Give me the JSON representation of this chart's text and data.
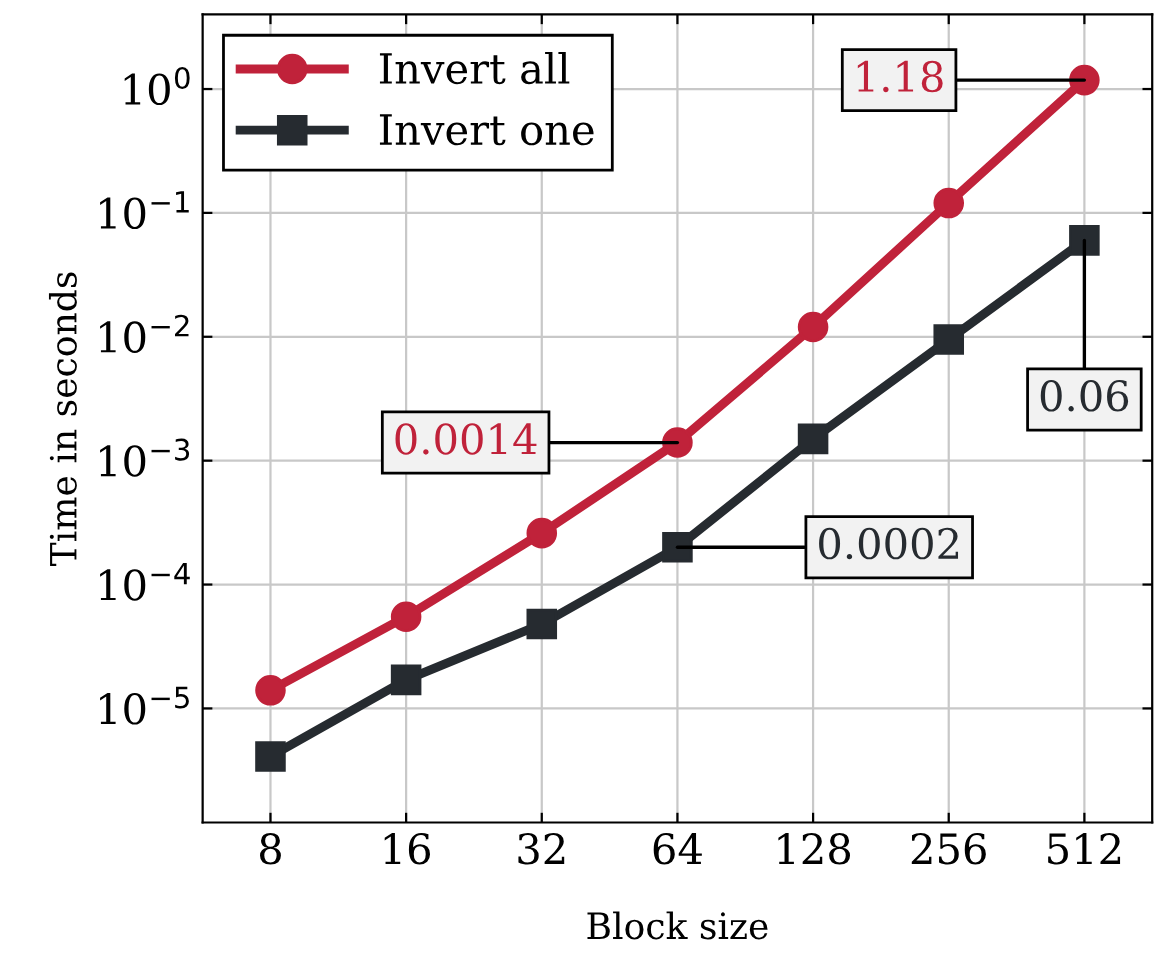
{
  "chart_data": {
    "type": "line",
    "xlabel": "Block size",
    "ylabel": "Time in seconds",
    "categories": [
      "8",
      "16",
      "32",
      "64",
      "128",
      "256",
      "512"
    ],
    "series": [
      {
        "name": "Invert all",
        "color": "#c0223a",
        "marker": "circle",
        "values": [
          1.4e-05,
          5.5e-05,
          0.00026,
          0.0014,
          0.012,
          0.12,
          1.18
        ],
        "value_labels": [
          null,
          null,
          null,
          "0.0014",
          null,
          null,
          "1.18"
        ]
      },
      {
        "name": "Invert one",
        "color": "#262b30",
        "marker": "square",
        "values": [
          4.1e-06,
          1.7e-05,
          4.8e-05,
          0.0002,
          0.0015,
          0.0095,
          0.06
        ],
        "value_labels": [
          null,
          null,
          null,
          "0.0002",
          null,
          null,
          "0.06"
        ]
      }
    ],
    "log": "y",
    "ylim": [
      1.2e-06,
      4
    ],
    "yticks": [
      {
        "value": 1e-05,
        "label": "10$^{−5}$"
      },
      {
        "value": 0.0001,
        "label": "10$^{−4}$"
      },
      {
        "value": 0.001,
        "label": "10$^{−3}$"
      },
      {
        "value": 0.01,
        "label": "10$^{−2}$"
      },
      {
        "value": 0.1,
        "label": "10$^{−1}$"
      },
      {
        "value": 1,
        "label": "10$^{0}$"
      }
    ],
    "grid": true,
    "legend": "top left",
    "line_style": "solid"
  }
}
